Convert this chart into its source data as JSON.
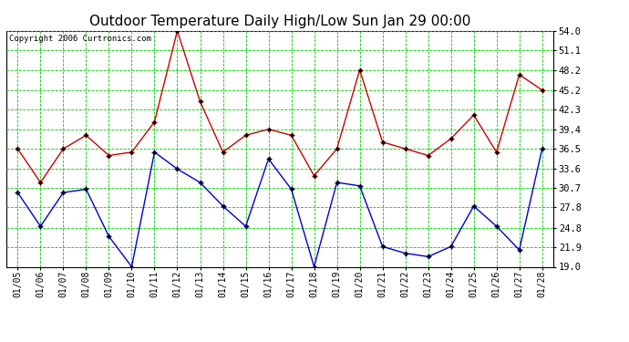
{
  "title": "Outdoor Temperature Daily High/Low Sun Jan 29 00:00",
  "copyright": "Copyright 2006 Curtronics.com",
  "dates": [
    "01/05",
    "01/06",
    "01/07",
    "01/08",
    "01/09",
    "01/10",
    "01/11",
    "01/12",
    "01/13",
    "01/14",
    "01/15",
    "01/16",
    "01/17",
    "01/18",
    "01/19",
    "01/20",
    "01/21",
    "01/22",
    "01/23",
    "01/24",
    "01/25",
    "01/26",
    "01/27",
    "01/28"
  ],
  "high": [
    36.5,
    31.5,
    36.5,
    38.5,
    35.5,
    36.0,
    40.5,
    54.0,
    43.5,
    36.0,
    38.5,
    39.4,
    38.5,
    32.5,
    36.5,
    48.2,
    37.5,
    36.5,
    35.5,
    38.0,
    41.5,
    36.0,
    47.5,
    45.2
  ],
  "low": [
    30.0,
    25.0,
    30.0,
    30.5,
    23.5,
    19.0,
    36.0,
    33.5,
    31.5,
    28.0,
    25.0,
    35.0,
    30.5,
    19.0,
    31.5,
    31.0,
    22.0,
    21.0,
    20.5,
    22.0,
    28.0,
    25.0,
    21.5,
    36.5
  ],
  "high_color": "#cc0000",
  "low_color": "#0000cc",
  "bg_color": "#ffffff",
  "grid_color": "#00cc00",
  "title_color": "#000000",
  "ylim_min": 19.0,
  "ylim_max": 54.0,
  "yticks": [
    19.0,
    21.9,
    24.8,
    27.8,
    30.7,
    33.6,
    36.5,
    39.4,
    42.3,
    45.2,
    48.2,
    51.1,
    54.0
  ]
}
